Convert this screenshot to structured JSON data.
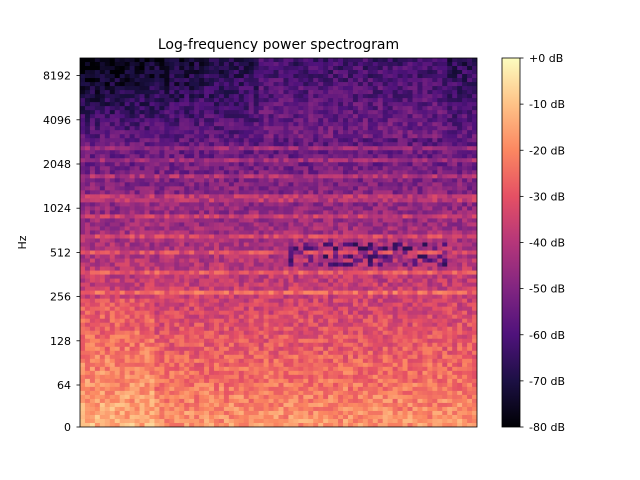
{
  "chart_data": [
    {
      "type": "heatmap",
      "title": "Log-frequency power spectrogram",
      "xlabel": "",
      "ylabel": "Hz",
      "y_scale": "log2",
      "y_ticks": [
        {
          "value": 0,
          "label": "0"
        },
        {
          "value": 64,
          "label": "64"
        },
        {
          "value": 128,
          "label": "128"
        },
        {
          "value": 256,
          "label": "256"
        },
        {
          "value": 512,
          "label": "512"
        },
        {
          "value": 1024,
          "label": "1024"
        },
        {
          "value": 2048,
          "label": "2048"
        },
        {
          "value": 4096,
          "label": "4096"
        },
        {
          "value": 8192,
          "label": "8192"
        }
      ],
      "x_ticks": [],
      "colormap": "magma",
      "grid": false,
      "value_range": [
        -80,
        0
      ],
      "colorbar": {
        "placement": "right",
        "unit": "dB",
        "ticks": [
          {
            "value": 0,
            "label": "+0 dB"
          },
          {
            "value": -10,
            "label": "-10 dB"
          },
          {
            "value": -20,
            "label": "-20 dB"
          },
          {
            "value": -30,
            "label": "-30 dB"
          },
          {
            "value": -40,
            "label": "-40 dB"
          },
          {
            "value": -50,
            "label": "-50 dB"
          },
          {
            "value": -60,
            "label": "-60 dB"
          },
          {
            "value": -70,
            "label": "-70 dB"
          },
          {
            "value": -80,
            "label": "-80 dB"
          }
        ]
      },
      "colors": {
        "magma_stops": [
          "#000004",
          "#1c1044",
          "#4f127b",
          "#812581",
          "#b5367a",
          "#e55064",
          "#fb8761",
          "#fec287",
          "#fcfdbf"
        ]
      }
    }
  ]
}
